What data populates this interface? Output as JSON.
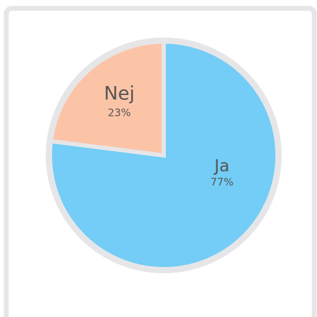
{
  "chart_data": {
    "type": "pie",
    "categories": [
      "Ja",
      "Nej"
    ],
    "values": [
      77,
      23
    ],
    "value_labels": [
      "77%",
      "23%"
    ],
    "colors": [
      "#73cdf6",
      "#fcc4a7"
    ]
  }
}
